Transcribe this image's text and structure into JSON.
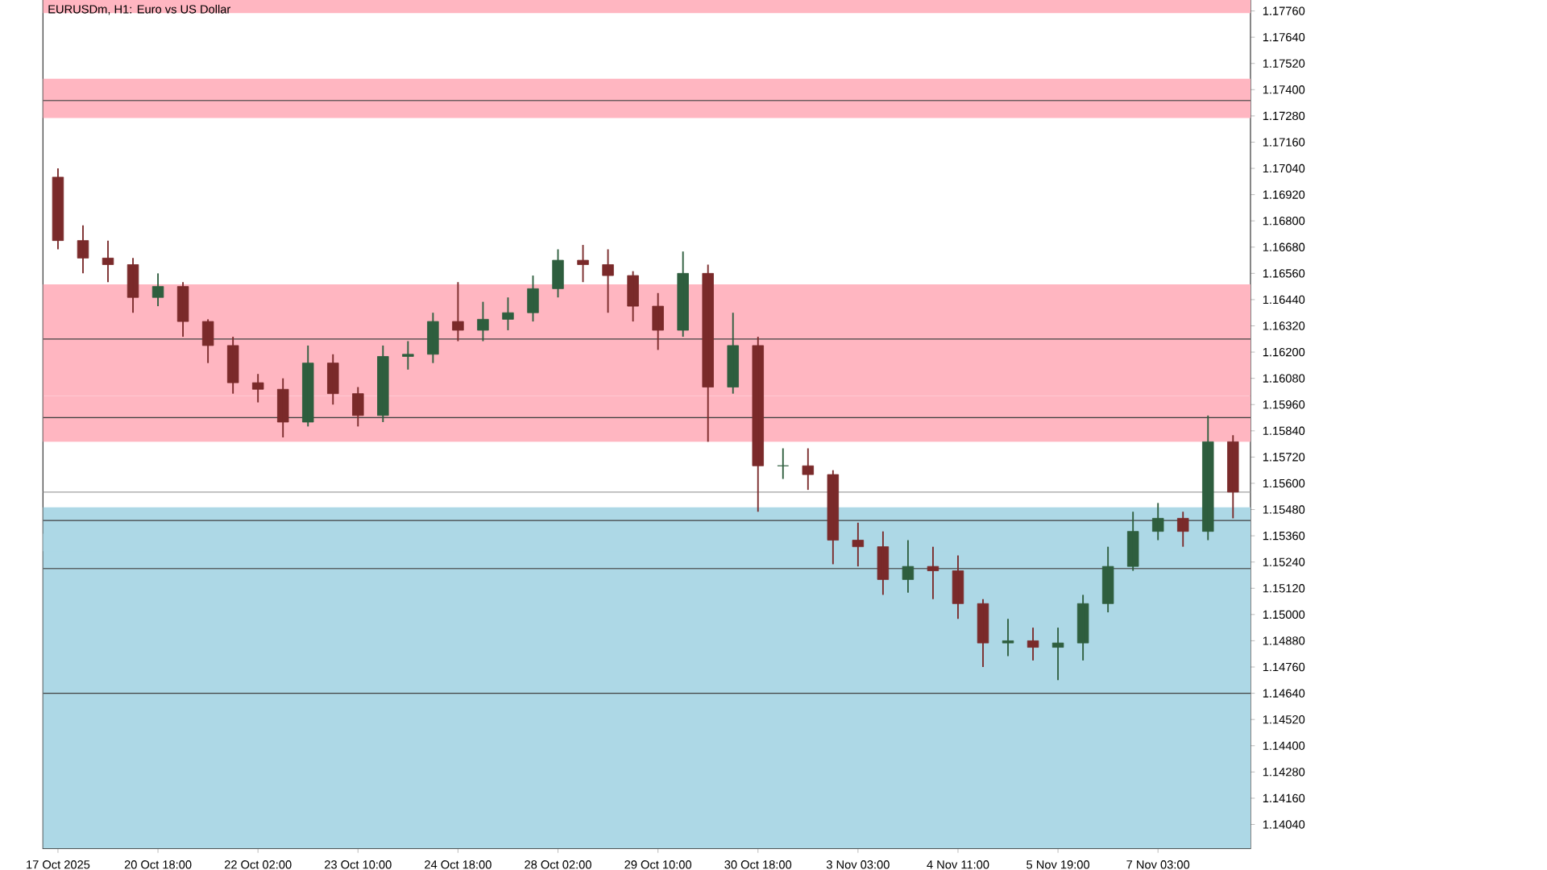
{
  "chart_data": {
    "type": "candlestick",
    "title": "EURUSDm, H1:  Euro vs US Dollar",
    "categories": [
      "17 Oct 2025",
      null,
      null,
      null,
      "20 Oct 18:00",
      null,
      null,
      null,
      "22 Oct 02:00",
      null,
      null,
      null,
      "23 Oct 10:00",
      null,
      null,
      null,
      "24 Oct 18:00",
      null,
      null,
      null,
      "28 Oct 02:00",
      null,
      null,
      null,
      "29 Oct 10:00",
      null,
      null,
      null,
      "30 Oct 18:00",
      null,
      null,
      null,
      "3 Nov 03:00",
      null,
      null,
      null,
      "4 Nov 11:00",
      null,
      null,
      null,
      "5 Nov 19:00",
      null,
      null,
      null,
      "7 Nov 03:00",
      null,
      null,
      null
    ],
    "ohlc": [
      [
        1.17,
        1.1704,
        1.1667,
        1.1671
      ],
      [
        1.1671,
        1.1678,
        1.1656,
        1.1663
      ],
      [
        1.1663,
        1.1671,
        1.1652,
        1.166
      ],
      [
        1.166,
        1.1663,
        1.1638,
        1.1645
      ],
      [
        1.1645,
        1.1656,
        1.1641,
        1.165
      ],
      [
        1.165,
        1.1652,
        1.1627,
        1.1634
      ],
      [
        1.1634,
        1.1635,
        1.1615,
        1.1623
      ],
      [
        1.1623,
        1.1627,
        1.1601,
        1.1606
      ],
      [
        1.1606,
        1.161,
        1.1597,
        1.1603
      ],
      [
        1.1603,
        1.1608,
        1.1581,
        1.1588
      ],
      [
        1.1588,
        1.1623,
        1.1586,
        1.1615
      ],
      [
        1.1615,
        1.1619,
        1.1596,
        1.1601
      ],
      [
        1.1601,
        1.1604,
        1.1586,
        1.1591
      ],
      [
        1.1591,
        1.1623,
        1.1588,
        1.1618
      ],
      [
        1.1618,
        1.1625,
        1.1612,
        1.1619
      ],
      [
        1.1619,
        1.1638,
        1.1615,
        1.1634
      ],
      [
        1.1634,
        1.1652,
        1.1625,
        1.163
      ],
      [
        1.163,
        1.1643,
        1.1625,
        1.1635
      ],
      [
        1.1635,
        1.1645,
        1.163,
        1.1638
      ],
      [
        1.1638,
        1.1655,
        1.1634,
        1.1649
      ],
      [
        1.1649,
        1.1667,
        1.1645,
        1.1662
      ],
      [
        1.1662,
        1.1669,
        1.1652,
        1.166
      ],
      [
        1.166,
        1.1667,
        1.1638,
        1.1655
      ],
      [
        1.1655,
        1.1657,
        1.1634,
        1.1641
      ],
      [
        1.1641,
        1.1647,
        1.1621,
        1.163
      ],
      [
        1.163,
        1.1666,
        1.1627,
        1.1656
      ],
      [
        1.1656,
        1.166,
        1.1579,
        1.1604
      ],
      [
        1.1604,
        1.1638,
        1.1601,
        1.1623
      ],
      [
        1.1623,
        1.1627,
        1.1547,
        1.1568
      ],
      [
        1.1568,
        1.1576,
        1.1562,
        1.1568
      ],
      [
        1.1568,
        1.1576,
        1.1557,
        1.1564
      ],
      [
        1.1564,
        1.1566,
        1.1523,
        1.1534
      ],
      [
        1.1534,
        1.1542,
        1.1522,
        1.1531
      ],
      [
        1.1531,
        1.1538,
        1.1509,
        1.1516
      ],
      [
        1.1516,
        1.1534,
        1.151,
        1.1522
      ],
      [
        1.1522,
        1.1531,
        1.1507,
        1.152
      ],
      [
        1.152,
        1.1527,
        1.1498,
        1.1505
      ],
      [
        1.1505,
        1.1507,
        1.1476,
        1.1487
      ],
      [
        1.1487,
        1.1498,
        1.1481,
        1.1488
      ],
      [
        1.1488,
        1.1494,
        1.1479,
        1.1485
      ],
      [
        1.1485,
        1.1494,
        1.147,
        1.1487
      ],
      [
        1.1487,
        1.1509,
        1.1479,
        1.1505
      ],
      [
        1.1505,
        1.1531,
        1.1501,
        1.1522
      ],
      [
        1.1522,
        1.1547,
        1.152,
        1.1538
      ],
      [
        1.1538,
        1.1551,
        1.1534,
        1.1544
      ],
      [
        1.1544,
        1.1547,
        1.1531,
        1.1538
      ],
      [
        1.1538,
        1.1591,
        1.1534,
        1.1579
      ],
      [
        1.1579,
        1.1582,
        1.1544,
        1.1556
      ]
    ],
    "colors": [
      "#7a2a2a",
      "#7a2a2a",
      "#7a2a2a",
      "#7a2a2a",
      "#2e5e3e",
      "#7a2a2a",
      "#7a2a2a",
      "#7a2a2a",
      "#7a2a2a",
      "#7a2a2a",
      "#2e5e3e",
      "#7a2a2a",
      "#7a2a2a",
      "#2e5e3e",
      "#2e5e3e",
      "#2e5e3e",
      "#7a2a2a",
      "#2e5e3e",
      "#2e5e3e",
      "#2e5e3e",
      "#2e5e3e",
      "#7a2a2a",
      "#7a2a2a",
      "#7a2a2a",
      "#7a2a2a",
      "#2e5e3e",
      "#7a2a2a",
      "#2e5e3e",
      "#7a2a2a",
      "#2e5e3e",
      "#7a2a2a",
      "#7a2a2a",
      "#7a2a2a",
      "#7a2a2a",
      "#2e5e3e",
      "#7a2a2a",
      "#7a2a2a",
      "#7a2a2a",
      "#2e5e3e",
      "#7a2a2a",
      "#2e5e3e",
      "#2e5e3e",
      "#2e5e3e",
      "#2e5e3e",
      "#2e5e3e",
      "#7a2a2a",
      "#2e5e3e",
      "#7a2a2a"
    ],
    "ylim": [
      1.1393,
      1.1781
    ],
    "yticks": [
      {
        "value": 1.1404,
        "label": "1.14040"
      },
      {
        "value": 1.1416,
        "label": "1.14160"
      },
      {
        "value": 1.1428,
        "label": "1.14280"
      },
      {
        "value": 1.144,
        "label": "1.14400"
      },
      {
        "value": 1.1452,
        "label": "1.14520"
      },
      {
        "value": 1.1464,
        "label": "1.14640"
      },
      {
        "value": 1.1476,
        "label": "1.14760"
      },
      {
        "value": 1.1488,
        "label": "1.14880"
      },
      {
        "value": 1.15,
        "label": "1.15000"
      },
      {
        "value": 1.1512,
        "label": "1.15120"
      },
      {
        "value": 1.1524,
        "label": "1.15240"
      },
      {
        "value": 1.1536,
        "label": "1.15360"
      },
      {
        "value": 1.1548,
        "label": "1.15480"
      },
      {
        "value": 1.156,
        "label": "1.15600"
      },
      {
        "value": 1.1572,
        "label": "1.15720"
      },
      {
        "value": 1.1584,
        "label": "1.15840"
      },
      {
        "value": 1.1596,
        "label": "1.15960"
      },
      {
        "value": 1.1608,
        "label": "1.16080"
      },
      {
        "value": 1.162,
        "label": "1.16200"
      },
      {
        "value": 1.1632,
        "label": "1.16320"
      },
      {
        "value": 1.1644,
        "label": "1.16440"
      },
      {
        "value": 1.1656,
        "label": "1.16560"
      },
      {
        "value": 1.1668,
        "label": "1.16680"
      },
      {
        "value": 1.168,
        "label": "1.16800"
      },
      {
        "value": 1.1692,
        "label": "1.16920"
      },
      {
        "value": 1.1704,
        "label": "1.17040"
      },
      {
        "value": 1.1716,
        "label": "1.17160"
      },
      {
        "value": 1.1728,
        "label": "1.17280"
      },
      {
        "value": 1.174,
        "label": "1.17400"
      },
      {
        "value": 1.1752,
        "label": "1.17520"
      },
      {
        "value": 1.1764,
        "label": "1.17640"
      },
      {
        "value": 1.1776,
        "label": "1.17760"
      }
    ],
    "bands": [
      {
        "axis": "y",
        "from": 1.1775,
        "to": 1.1781,
        "color": "#ffb6c1"
      },
      {
        "axis": "y",
        "from": 1.1727,
        "to": 1.1745,
        "color": "#ffb6c1"
      },
      {
        "axis": "y",
        "from": 1.16,
        "to": 1.1651,
        "color": "#ffb6c1"
      },
      {
        "axis": "y",
        "from": 1.1579,
        "to": 1.16,
        "color": "#ffb6c1"
      },
      {
        "axis": "y",
        "from": 1.1393,
        "to": 1.1537,
        "color": "#add8e6"
      },
      {
        "axis": "y",
        "from": 1.1529,
        "to": 1.1549,
        "color": "#add8e6"
      }
    ],
    "ref_lines": [
      {
        "axis": "y",
        "value": 1.1735,
        "color": "#404040"
      },
      {
        "axis": "y",
        "value": 1.1626,
        "color": "#404040"
      },
      {
        "axis": "y",
        "value": 1.159,
        "color": "#404040"
      },
      {
        "axis": "y",
        "value": 1.1543,
        "color": "#404040"
      },
      {
        "axis": "y",
        "value": 1.1521,
        "color": "#404040"
      },
      {
        "axis": "y",
        "value": 1.1464,
        "color": "#404040"
      },
      {
        "axis": "y",
        "value": 1.1556,
        "color": "#a0a0a0"
      }
    ]
  }
}
